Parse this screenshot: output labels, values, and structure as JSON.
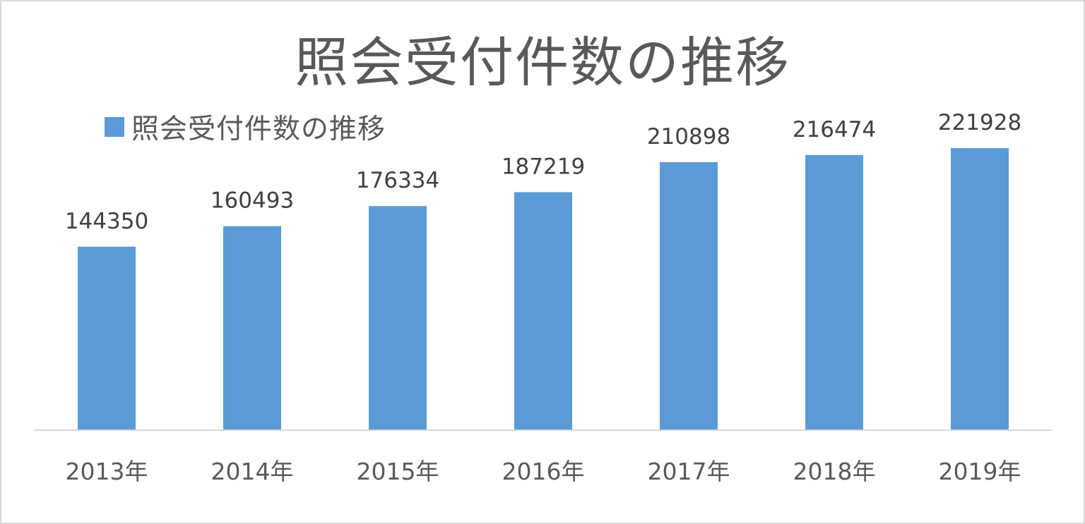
{
  "chart_data": {
    "type": "bar",
    "title": "照会受付件数の推移",
    "categories": [
      "2013年",
      "2014年",
      "2015年",
      "2016年",
      "2017年",
      "2018年",
      "2019年"
    ],
    "series": [
      {
        "name": "照会受付件数の推移",
        "values": [
          144350,
          160493,
          176334,
          187219,
          210898,
          216474,
          221928
        ],
        "color": "#5b9bd5"
      }
    ],
    "data_labels": [
      "144350",
      "160493",
      "176334",
      "187219",
      "210898",
      "216474",
      "221928"
    ],
    "ylim": [
      0,
      250000
    ],
    "grid": false,
    "legend_position": "top-left",
    "axis_color": "#d9d9d9"
  }
}
